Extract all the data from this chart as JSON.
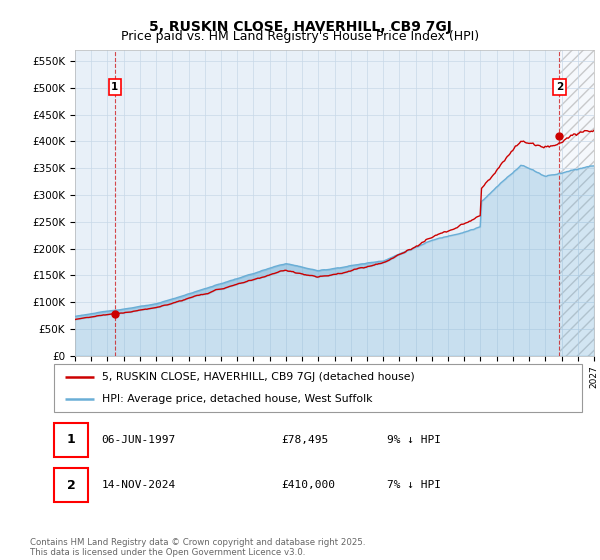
{
  "title": "5, RUSKIN CLOSE, HAVERHILL, CB9 7GJ",
  "subtitle": "Price paid vs. HM Land Registry's House Price Index (HPI)",
  "ylim": [
    0,
    570000
  ],
  "yticks": [
    0,
    50000,
    100000,
    150000,
    200000,
    250000,
    300000,
    350000,
    400000,
    450000,
    500000,
    550000
  ],
  "ytick_labels": [
    "£0",
    "£50K",
    "£100K",
    "£150K",
    "£200K",
    "£250K",
    "£300K",
    "£350K",
    "£400K",
    "£450K",
    "£500K",
    "£550K"
  ],
  "hpi_color": "#6aaed6",
  "price_color": "#cc0000",
  "sale1_date_num": 1997.45,
  "sale1_price": 78495,
  "sale2_date_num": 2024.87,
  "sale2_price": 410000,
  "legend_label1": "5, RUSKIN CLOSE, HAVERHILL, CB9 7GJ (detached house)",
  "legend_label2": "HPI: Average price, detached house, West Suffolk",
  "footnote": "Contains HM Land Registry data © Crown copyright and database right 2025.\nThis data is licensed under the Open Government Licence v3.0.",
  "background_color": "#ffffff",
  "grid_color": "#c8d8e8",
  "plot_bg_color": "#e8f0f8",
  "title_fontsize": 10,
  "subtitle_fontsize": 9
}
